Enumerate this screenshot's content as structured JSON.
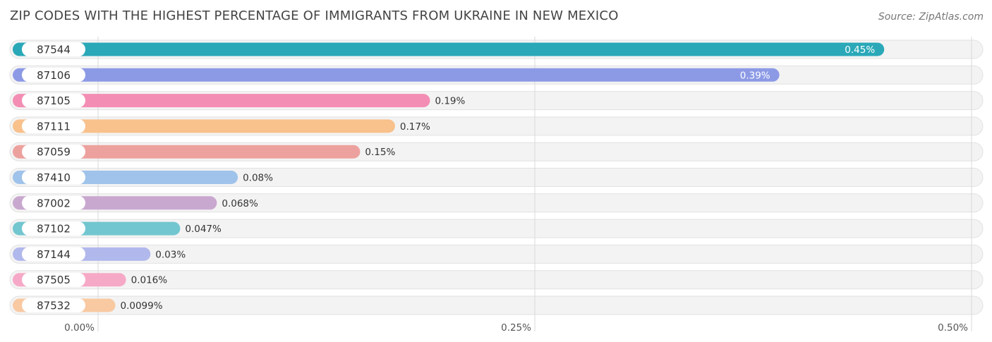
{
  "header": {
    "title": "ZIP CODES WITH THE HIGHEST PERCENTAGE OF IMMIGRANTS FROM UKRAINE IN NEW MEXICO",
    "source": "Source: ZipAtlas.com"
  },
  "chart_data": {
    "type": "bar",
    "orientation": "horizontal",
    "title": "ZIP CODES WITH THE HIGHEST PERCENTAGE OF IMMIGRANTS FROM UKRAINE IN NEW MEXICO",
    "xlabel": "",
    "ylabel": "",
    "xlim": [
      0,
      0.5
    ],
    "ticks": [
      {
        "value": 0,
        "label": "0.00%"
      },
      {
        "value": 0.25,
        "label": "0.25%"
      },
      {
        "value": 0.5,
        "label": "0.50%"
      }
    ],
    "categories": [
      "87544",
      "87106",
      "87105",
      "87111",
      "87059",
      "87410",
      "87002",
      "87102",
      "87144",
      "87505",
      "87532"
    ],
    "values": [
      0.45,
      0.39,
      0.19,
      0.17,
      0.15,
      0.08,
      0.068,
      0.047,
      0.03,
      0.016,
      0.0099
    ],
    "value_labels": [
      "0.45%",
      "0.39%",
      "0.19%",
      "0.17%",
      "0.15%",
      "0.08%",
      "0.068%",
      "0.047%",
      "0.03%",
      "0.016%",
      "0.0099%"
    ],
    "colors": [
      "#2aa8b8",
      "#8c9ae6",
      "#f48db3",
      "#f9c18c",
      "#eda19e",
      "#9fc3ea",
      "#c9a8cf",
      "#72c6cf",
      "#b1b8ec",
      "#f6a9c6",
      "#f9c9a2"
    ]
  }
}
